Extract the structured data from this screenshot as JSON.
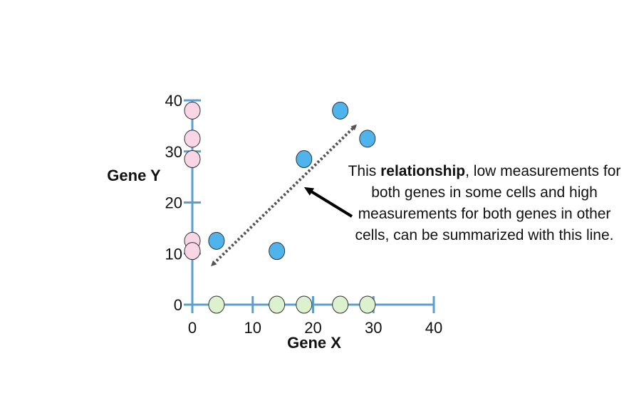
{
  "chart_data": {
    "type": "scatter",
    "xlabel": "Gene X",
    "ylabel": "Gene Y",
    "xlim": [
      0,
      40
    ],
    "ylim": [
      0,
      40
    ],
    "x_ticks": [
      "0",
      "10",
      "20",
      "30",
      "40"
    ],
    "y_ticks": [
      "0",
      "10",
      "20",
      "30",
      "40"
    ],
    "series": [
      {
        "role": "both-genes",
        "color": "#4fb3ec",
        "points": [
          [
            4,
            12.5
          ],
          [
            14,
            10.5
          ],
          [
            18.5,
            28.5
          ],
          [
            24.5,
            38
          ],
          [
            29,
            32.5
          ]
        ]
      },
      {
        "role": "gene-y-only",
        "color": "#f9d6e6",
        "points": [
          [
            0,
            38
          ],
          [
            0,
            32.5
          ],
          [
            0,
            28.5
          ],
          [
            0,
            12.5
          ],
          [
            0,
            10.5
          ]
        ]
      },
      {
        "role": "gene-x-only",
        "color": "#dcf2cf",
        "points": [
          [
            4,
            0
          ],
          [
            14,
            0
          ],
          [
            18.5,
            0
          ],
          [
            24.5,
            0
          ],
          [
            29,
            0
          ]
        ]
      }
    ],
    "trend_line": {
      "from": [
        3.5,
        8
      ],
      "to": [
        27,
        35
      ]
    },
    "grid": false
  },
  "annotation": {
    "prefix": "This ",
    "bold": "relationship",
    "suffix": ", low measurements for both genes in some cells and high measurements for both genes in other cells, can be summarized with this line."
  },
  "colors": {
    "axis": "#5aa0cf",
    "point_stroke": "#333333",
    "trend_line": "#555555",
    "pointer_arrow": "#000000"
  }
}
